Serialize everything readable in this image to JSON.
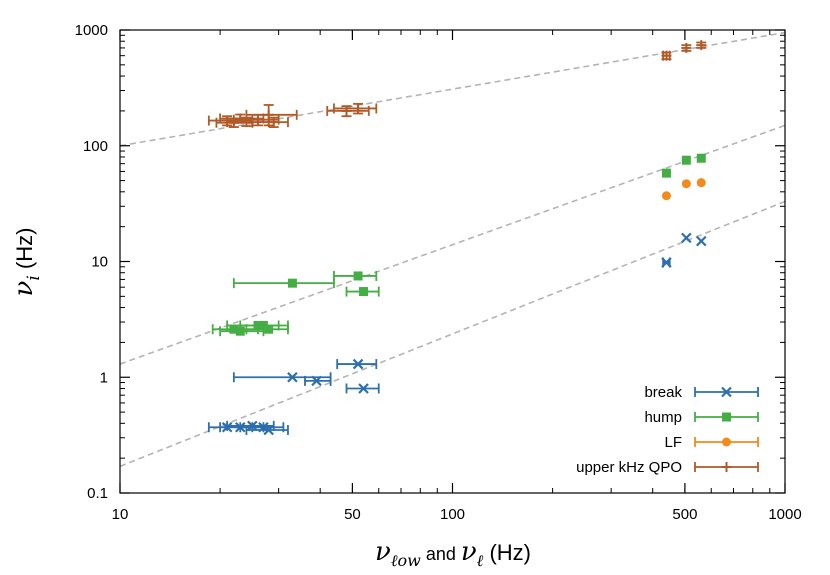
{
  "chart_data": {
    "type": "scatter",
    "x_scale": "log",
    "y_scale": "log",
    "xlim": [
      10,
      1000
    ],
    "ylim": [
      0.1,
      1000
    ],
    "x_ticks": [
      10,
      50,
      100,
      500,
      1000
    ],
    "x_tick_labels": [
      "10",
      "50",
      "100",
      "500",
      "1000"
    ],
    "y_ticks": [
      0.1,
      1,
      10,
      100,
      1000
    ],
    "y_tick_labels": [
      "0.1",
      "1",
      "10",
      "100",
      "1000"
    ],
    "xlabel_parts": {
      "sym1": "ν",
      "sub1": "ℓow",
      "mid": " and ",
      "sym2": "ν",
      "sub2": "ℓ",
      "unit": " (Hz)"
    },
    "ylabel_parts": {
      "sym": "ν",
      "sub": "i",
      "unit": " (Hz)"
    },
    "grid": false,
    "legend_position": "bottom-right",
    "reference_lines": [
      {
        "x": [
          10,
          1000
        ],
        "y": [
          100,
          950
        ],
        "color": "#b4b4b4"
      },
      {
        "x": [
          10,
          1000
        ],
        "y": [
          1.3,
          150
        ],
        "color": "#b4b4b4"
      },
      {
        "x": [
          10,
          1000
        ],
        "y": [
          0.17,
          33
        ],
        "color": "#b4b4b4"
      }
    ],
    "series": [
      {
        "name": "break",
        "marker": "x",
        "color": "#2d6fad",
        "points": [
          {
            "x": 33,
            "xerr": [
              22,
              43
            ],
            "y": 1.0
          },
          {
            "x": 39,
            "xerr": [
              36,
              43
            ],
            "y": 0.93
          },
          {
            "x": 52,
            "xerr": [
              45,
              59
            ],
            "y": 1.3
          },
          {
            "x": 54,
            "xerr": [
              48,
              60
            ],
            "y": 0.8
          },
          {
            "x": 21,
            "xerr": [
              18.5,
              25
            ],
            "y": 0.37
          },
          {
            "x": 23,
            "xerr": [
              20,
              27
            ],
            "y": 0.37
          },
          {
            "x": 25,
            "xerr": [
              21,
              29
            ],
            "y": 0.38
          },
          {
            "x": 27,
            "xerr": [
              23,
              31
            ],
            "y": 0.37
          },
          {
            "x": 28,
            "xerr": [
              24,
              32
            ],
            "y": 0.35
          },
          {
            "x": 440,
            "xerr": [
              430,
              450
            ],
            "y": 9.8
          },
          {
            "x": 505,
            "xerr": null,
            "y": 16
          },
          {
            "x": 560,
            "xerr": null,
            "y": 15
          }
        ]
      },
      {
        "name": "hump",
        "marker": "square",
        "color": "#44ad44",
        "points": [
          {
            "x": 33,
            "xerr": [
              22,
              44
            ],
            "y": 6.5
          },
          {
            "x": 52,
            "xerr": [
              44,
              59
            ],
            "y": 7.5
          },
          {
            "x": 54,
            "xerr": [
              48,
              60
            ],
            "y": 5.5
          },
          {
            "x": 22,
            "xerr": [
              19,
              26
            ],
            "y": 2.6
          },
          {
            "x": 23,
            "xerr": [
              20,
              27
            ],
            "y": 2.5
          },
          {
            "x": 26,
            "xerr": [
              21,
              30
            ],
            "y": 2.8
          },
          {
            "x": 27,
            "xerr": [
              23,
              32
            ],
            "y": 2.8
          },
          {
            "x": 28,
            "xerr": [
              24,
              32
            ],
            "y": 2.6
          },
          {
            "x": 440,
            "xerr": null,
            "y": 58
          },
          {
            "x": 505,
            "xerr": null,
            "y": 75
          },
          {
            "x": 560,
            "xerr": null,
            "y": 78
          }
        ]
      },
      {
        "name": "LF",
        "marker": "circle",
        "color": "#f28a1c",
        "points": [
          {
            "x": 440,
            "xerr": null,
            "y": 37
          },
          {
            "x": 505,
            "xerr": null,
            "y": 47
          },
          {
            "x": 560,
            "xerr": null,
            "y": 48
          }
        ]
      },
      {
        "name": "upper kHz QPO",
        "marker": "plus",
        "color": "#b05a28",
        "points": [
          {
            "x": 21,
            "xerr": [
              18.5,
              25
            ],
            "y": 165,
            "yerr": [
              150,
              180
            ]
          },
          {
            "x": 22,
            "xerr": [
              19.5,
              25
            ],
            "y": 158,
            "yerr": [
              145,
              172
            ]
          },
          {
            "x": 23,
            "xerr": [
              20,
              27
            ],
            "y": 172,
            "yerr": [
              158,
              186
            ]
          },
          {
            "x": 24,
            "xerr": [
              21,
              28
            ],
            "y": 160,
            "yerr": [
              148,
              175
            ]
          },
          {
            "x": 26,
            "xerr": [
              22,
              30
            ],
            "y": 168,
            "yerr": [
              150,
              185
            ]
          },
          {
            "x": 28,
            "xerr": [
              24,
              34
            ],
            "y": 185,
            "yerr": [
              150,
              225
            ]
          },
          {
            "x": 29,
            "xerr": [
              25,
              32
            ],
            "y": 160,
            "yerr": [
              145,
              175
            ]
          },
          {
            "x": 48,
            "xerr": [
              42,
              56
            ],
            "y": 200,
            "yerr": [
              180,
              220
            ]
          },
          {
            "x": 52,
            "xerr": [
              44,
              59
            ],
            "y": 210,
            "yerr": [
              190,
              230
            ]
          },
          {
            "x": 440,
            "xerr": [
              430,
              450
            ],
            "y": 600,
            "yerr": [
              560,
              640
            ]
          },
          {
            "x": 505,
            "xerr": null,
            "y": 700,
            "yerr": [
              660,
              740
            ]
          },
          {
            "x": 560,
            "xerr": null,
            "y": 740,
            "yerr": [
              700,
              780
            ]
          }
        ]
      }
    ]
  }
}
